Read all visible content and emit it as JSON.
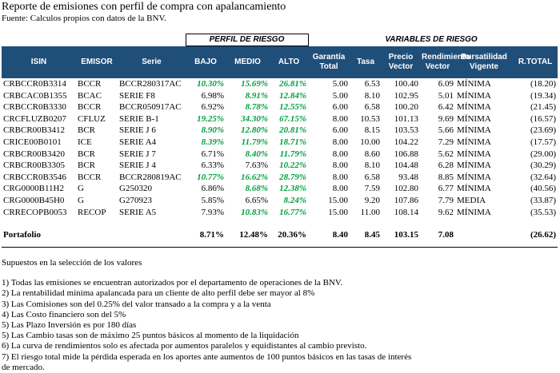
{
  "header": {
    "title": "Reporte de emisiones con perfil de compra con apalancamiento",
    "source": "Fuente: Calculos propios con datos de la BNV."
  },
  "table": {
    "groups": [
      "PERFIL DE RIESGO",
      "VARIABLES DE RIESGO"
    ],
    "columns": [
      "ISIN",
      "EMISOR",
      "Serie",
      "BAJO",
      "MEDIO",
      "ALTO",
      "Garantía Total",
      "Tasa",
      "Precio Vector",
      "Rendimiento Vector",
      "Bursatilidad Vigente",
      "R.TOTAL"
    ],
    "highlight_color": "#00a040",
    "rows": [
      {
        "cells": [
          "CRBCCR0B3314",
          "BCCR",
          "BCCR280317AC",
          "10.30%",
          "15.69%",
          "26.81%",
          "5.00",
          "6.53",
          "100.40",
          "6.09",
          "MÍNIMA",
          "(18.20)"
        ],
        "highlight": [
          3,
          4,
          5
        ]
      },
      {
        "cells": [
          "CRBCAC0B1355",
          "BCAC",
          "SERIE F8",
          "6.98%",
          "8.91%",
          "12.84%",
          "5.00",
          "8.10",
          "102.95",
          "5.01",
          "MÍNIMA",
          "(19.34)"
        ],
        "highlight": [
          4,
          5
        ]
      },
      {
        "cells": [
          "CRBCCR0B3330",
          "BCCR",
          "BCCR050917AC",
          "6.92%",
          "8.78%",
          "12.55%",
          "6.00",
          "6.58",
          "100.20",
          "6.42",
          "MÍNIMA",
          "(21.45)"
        ],
        "highlight": [
          4,
          5
        ]
      },
      {
        "cells": [
          "CRCFLUZB0207",
          "CFLUZ",
          "SERIE B-1",
          "19.25%",
          "34.30%",
          "67.15%",
          "8.00",
          "10.53",
          "101.13",
          "9.69",
          "MÍNIMA",
          "(16.57)"
        ],
        "highlight": [
          3,
          4,
          5
        ]
      },
      {
        "cells": [
          "CRBCR00B3412",
          "BCR",
          "SERIE J 6",
          "8.90%",
          "12.80%",
          "20.81%",
          "6.00",
          "8.15",
          "103.53",
          "5.66",
          "MÍNIMA",
          "(23.69)"
        ],
        "highlight": [
          3,
          4,
          5
        ]
      },
      {
        "cells": [
          "CRICE00B0101",
          "ICE",
          "SERIE A4",
          "8.39%",
          "11.79%",
          "18.71%",
          "8.00",
          "10.00",
          "104.22",
          "7.29",
          "MÍNIMA",
          "(17.57)"
        ],
        "highlight": [
          3,
          4,
          5
        ]
      },
      {
        "cells": [
          "CRBCR00B3420",
          "BCR",
          "SERIE J 7",
          "6.71%",
          "8.40%",
          "11.79%",
          "8.00",
          "8.60",
          "106.88",
          "5.62",
          "MÍNIMA",
          "(29.00)"
        ],
        "highlight": [
          4,
          5
        ]
      },
      {
        "cells": [
          "CRBCR00B3305",
          "BCR",
          "SERIE J 4",
          "6.33%",
          "7.63%",
          "10.22%",
          "8.00",
          "8.10",
          "104.48",
          "6.28",
          "MÍNIMA",
          "(30.29)"
        ],
        "highlight": [
          5
        ]
      },
      {
        "cells": [
          "CRBCCR0B3546",
          "BCCR",
          "BCCR280819AC",
          "10.77%",
          "16.62%",
          "28.79%",
          "8.00",
          "6.58",
          "93.48",
          "8.85",
          "MÍNIMA",
          "(32.64)"
        ],
        "highlight": [
          3,
          4,
          5
        ]
      },
      {
        "cells": [
          "CRG0000B11H2",
          "G",
          "G250320",
          "6.86%",
          "8.68%",
          "12.38%",
          "8.00",
          "7.59",
          "102.80",
          "6.77",
          "MÍNIMA",
          "(40.56)"
        ],
        "highlight": [
          4,
          5
        ]
      },
      {
        "cells": [
          "CRG0000B45H0",
          "G",
          "G270923",
          "5.85%",
          "6.65%",
          "8.24%",
          "15.00",
          "9.20",
          "107.86",
          "7.79",
          "MEDIA",
          "(33.87)"
        ],
        "highlight": [
          5
        ]
      },
      {
        "cells": [
          "CRRECOPB0053",
          "RECOP",
          "SERIE A5",
          "7.93%",
          "10.83%",
          "16.77%",
          "15.00",
          "11.00",
          "108.14",
          "9.62",
          "MÍNIMA",
          "(35.53)"
        ],
        "highlight": [
          4,
          5
        ]
      }
    ],
    "total": {
      "label": "Portafolio",
      "values": [
        "8.71%",
        "12.48%",
        "20.36%",
        "8.40",
        "8.45",
        "103.15",
        "7.08",
        "(26.62)"
      ]
    }
  },
  "notes": {
    "title": "Supuestos en la selección de los valores",
    "items": [
      "1) Todas las emisiones se encuentran autorizados por el departamento de operaciones de la BNV.",
      "2) La rentabilidad mínima apalancada para un cliente de alto perfil debe ser mayor al 8%",
      "3) Las Comisiones son del 0.25% del valor transado a la compra y a la venta",
      "4) Las Costo financiero son del 5%",
      "5) Las Plazo Inversión es por 180 días",
      "5) Las Cambio tasas son de máximo 25 puntos básicos al momento de la liquidación",
      "6) La curva de rendimientos solo es afectada por aumentos paralelos y equidistantes al cambio previsto.",
      "7) El riesgo total mide la pérdida esperada en los aportes ante aumentos de 100 puntos básicos en las tasas de interés de mercado."
    ]
  }
}
